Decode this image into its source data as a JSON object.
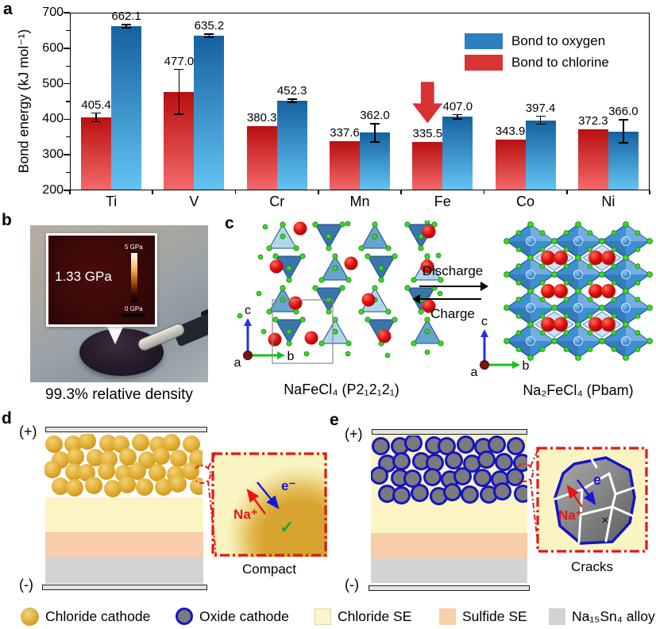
{
  "panel_labels": {
    "a": "a",
    "b": "b",
    "c": "c",
    "d": "d",
    "e": "e"
  },
  "chart_data": {
    "type": "bar",
    "title": "",
    "ylabel": "Bond energy (kJ mol⁻¹)",
    "categories": [
      "Ti",
      "V",
      "Cr",
      "Mn",
      "Fe",
      "Co",
      "Ni"
    ],
    "ylim": [
      200,
      700
    ],
    "yticks": [
      200,
      300,
      400,
      500,
      600,
      700
    ],
    "grid": false,
    "legend_position": "top-right",
    "series": [
      {
        "name": "Bond to oxygen",
        "color": "#2e7fc0",
        "values": [
          662.1,
          635.2,
          452.3,
          362.0,
          407.0,
          397.4,
          366.0
        ],
        "errors": [
          4,
          4,
          5,
          26,
          6,
          11,
          32
        ]
      },
      {
        "name": "Bond to chlorine",
        "color": "#d93434",
        "values": [
          405.4,
          477.0,
          380.3,
          337.6,
          335.5,
          343.9,
          372.3
        ],
        "errors": [
          12,
          63,
          null,
          null,
          null,
          null,
          null
        ]
      }
    ],
    "annotation": {
      "type": "down_arrow",
      "category": "Fe",
      "series": "Bond to chlorine",
      "color": "#d93030"
    }
  },
  "panel_b": {
    "inset_value": "1.33 GPa",
    "colorbar_top": "5 GPa",
    "colorbar_bottom": "0 GPa",
    "caption": "99.3% relative density"
  },
  "panel_c": {
    "discharge": "Discharge",
    "charge": "Charge",
    "left_caption": "NaFeCl₄ (P2₁2₁2₁)",
    "right_caption": "Na₂FeCl₄ (Pbam)",
    "axis_a": "a",
    "axis_b": "b",
    "axis_c": "c"
  },
  "panel_d": {
    "plus": "(+)",
    "minus": "(-)",
    "na_ion": "Na⁺",
    "electron": "e⁻",
    "check": "✓",
    "inset_caption": "Compact"
  },
  "panel_e": {
    "plus": "(+)",
    "minus": "(-)",
    "na_ion": "Na⁺",
    "electron": "e",
    "cross": "×",
    "inset_caption": "Cracks"
  },
  "legend": {
    "items": [
      {
        "label": "Chloride cathode",
        "swatch": "gold-circle",
        "color": "#dfa92c"
      },
      {
        "label": "Oxide cathode",
        "swatch": "gray-circle-blue-ring",
        "color": "#7b7b7b",
        "ring": "#1414c8"
      },
      {
        "label": "Chloride SE",
        "swatch": "pale-yellow-square",
        "color": "#fbf6c9"
      },
      {
        "label": "Sulfide SE",
        "swatch": "peach-square",
        "color": "#f8cfa8"
      },
      {
        "label": "Na₁₅Sn₄ alloy",
        "swatch": "gray-square",
        "color": "#d2d2d2"
      }
    ]
  }
}
